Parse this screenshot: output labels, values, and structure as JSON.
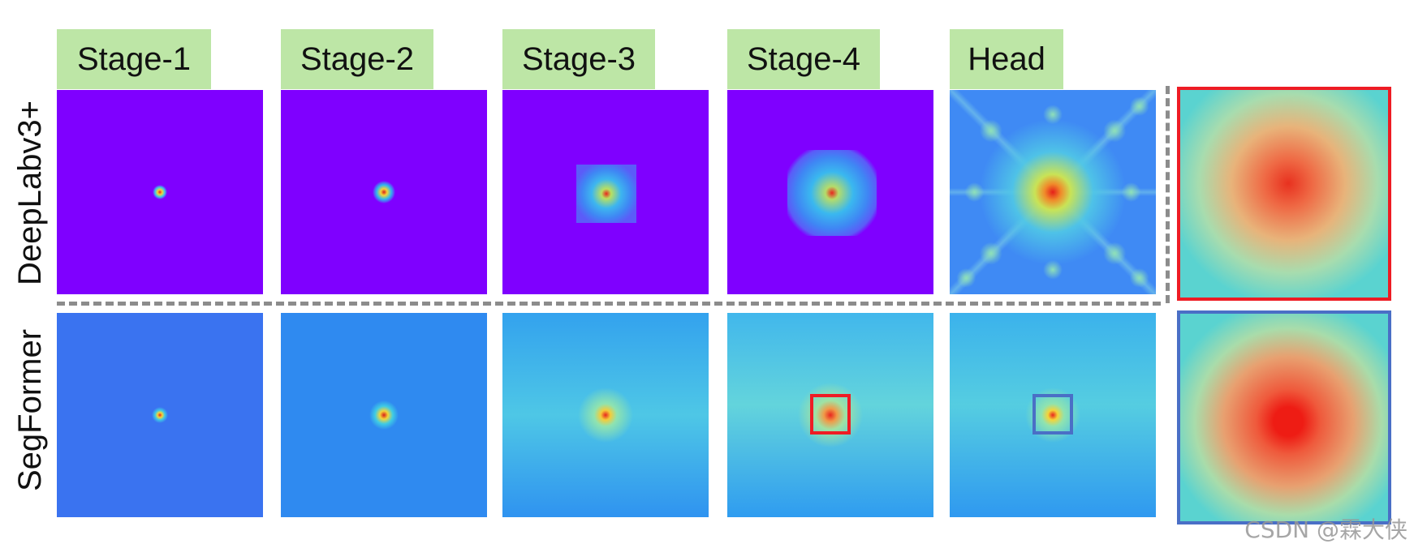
{
  "stages": [
    "Stage-1",
    "Stage-2",
    "Stage-3",
    "Stage-4",
    "Head"
  ],
  "rows": [
    "DeepLabv3+",
    "SegFormer"
  ],
  "watermark": "CSDN @霖大侠",
  "colors": {
    "label_bg": "#bde6a6",
    "deeplab_bg": "#7f00ff",
    "segformer_bg": "#2e9ff0",
    "zoom_deeplab_border": "#ee1c24",
    "zoom_segformer_border": "#4a6fc6",
    "separator": "#8c8c8c"
  }
}
